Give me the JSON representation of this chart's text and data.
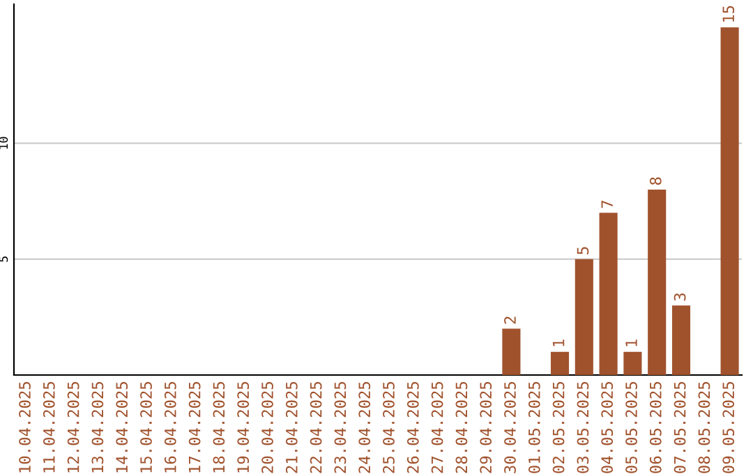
{
  "chart_data": {
    "type": "bar",
    "categories": [
      "10.04.2025",
      "11.04.2025",
      "12.04.2025",
      "13.04.2025",
      "14.04.2025",
      "15.04.2025",
      "16.04.2025",
      "17.04.2025",
      "18.04.2025",
      "19.04.2025",
      "20.04.2025",
      "21.04.2025",
      "22.04.2025",
      "23.04.2025",
      "24.04.2025",
      "25.04.2025",
      "26.04.2025",
      "27.04.2025",
      "28.04.2025",
      "29.04.2025",
      "30.04.2025",
      "01.05.2025",
      "02.05.2025",
      "03.05.2025",
      "04.05.2025",
      "05.05.2025",
      "06.05.2025",
      "07.05.2025",
      "08.05.2025",
      "09.05.2025"
    ],
    "values": [
      0,
      0,
      0,
      0,
      0,
      0,
      0,
      0,
      0,
      0,
      0,
      0,
      0,
      0,
      0,
      0,
      0,
      0,
      0,
      0,
      2,
      0,
      1,
      5,
      7,
      1,
      8,
      3,
      0,
      15
    ],
    "value_labels": [
      null,
      null,
      null,
      null,
      null,
      null,
      null,
      null,
      null,
      null,
      null,
      null,
      null,
      null,
      null,
      null,
      null,
      null,
      null,
      null,
      "2",
      null,
      "1",
      "5",
      "7",
      "1",
      "8",
      "3",
      null,
      "15"
    ],
    "color": "#a0522d",
    "ylim": [
      0,
      16
    ],
    "yticks": [
      5,
      10
    ],
    "grid": "y"
  }
}
